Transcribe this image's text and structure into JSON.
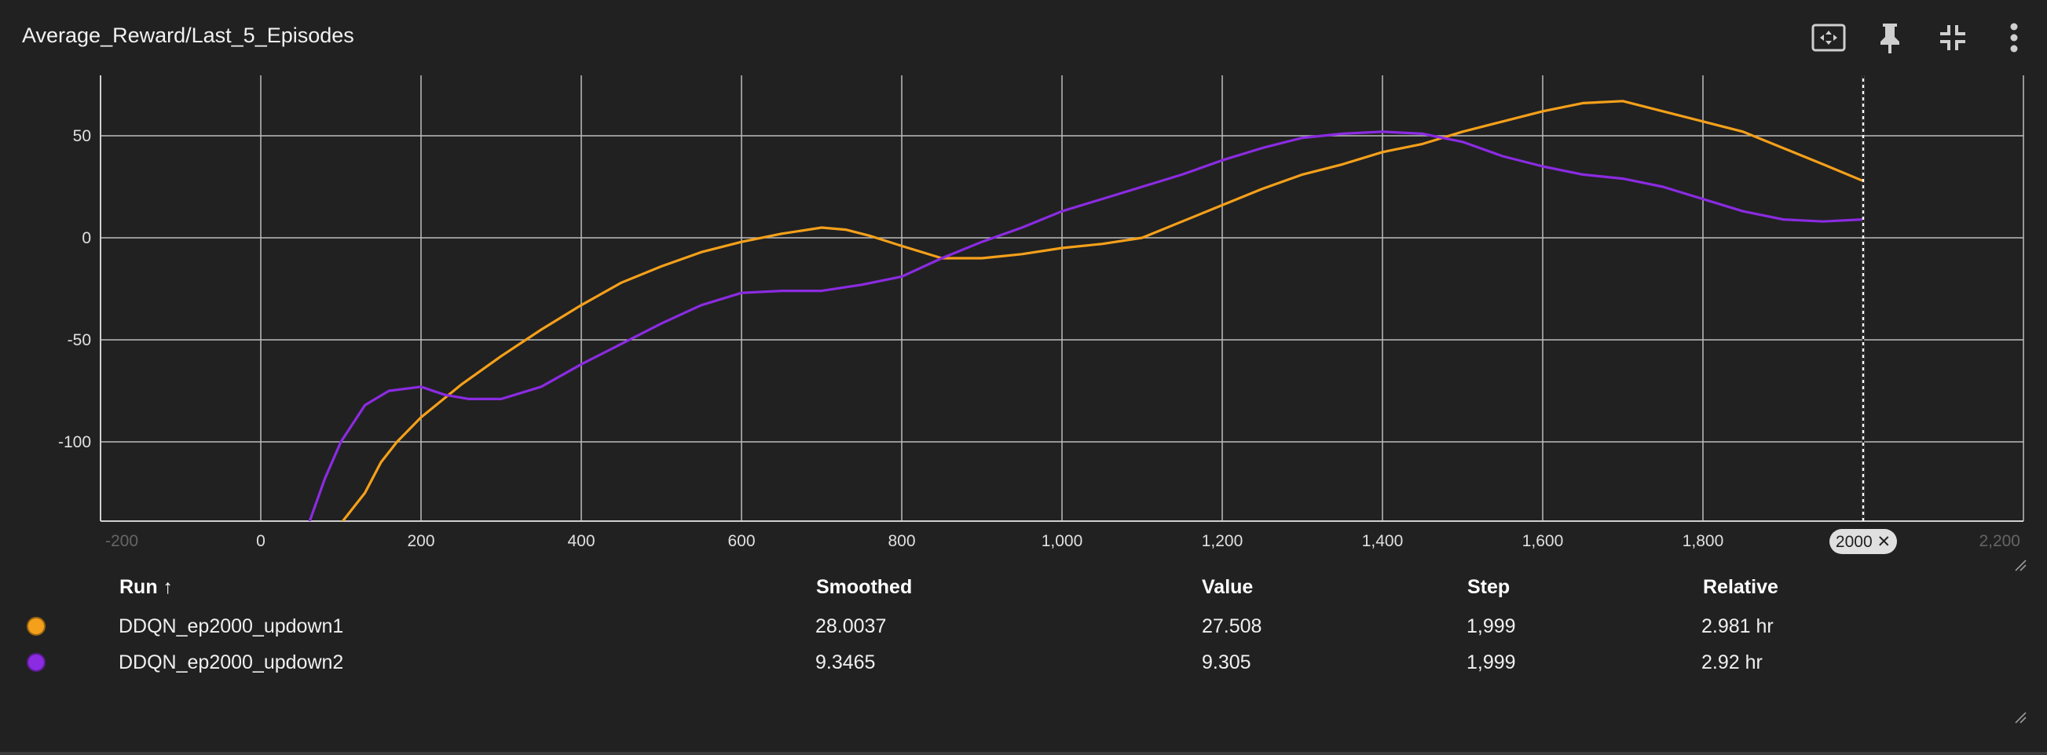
{
  "card": {
    "title": "Average_Reward/Last_5_Episodes"
  },
  "toolbar": {
    "icons": [
      "fit-to-data-icon",
      "pin-icon",
      "collapse-icon",
      "more-vert-icon"
    ]
  },
  "chart_data": {
    "type": "line",
    "title": "Average_Reward/Last_5_Episodes",
    "xlabel": "",
    "ylabel": "",
    "xlim": [
      -200,
      2200
    ],
    "ylim": [
      -140,
      80
    ],
    "x_ticks": [
      -200,
      0,
      200,
      400,
      600,
      800,
      1000,
      1200,
      1400,
      1600,
      1800,
      2200
    ],
    "x_tick_labels": [
      "-200",
      "0",
      "200",
      "400",
      "600",
      "800",
      "1,000",
      "1,200",
      "1,400",
      "1,600",
      "1,800",
      "2,200"
    ],
    "y_ticks": [
      50,
      0,
      -50,
      -100
    ],
    "y_tick_labels": [
      "50",
      "0",
      "-50",
      "-100"
    ],
    "grid": true,
    "cursor": {
      "step": 2000,
      "label": "2000 ✕"
    },
    "series": [
      {
        "name": "DDQN_ep2000_updown1",
        "color": "#f5a01a",
        "x": [
          100,
          130,
          150,
          170,
          200,
          250,
          300,
          350,
          400,
          450,
          500,
          550,
          600,
          650,
          700,
          730,
          760,
          800,
          850,
          900,
          950,
          1000,
          1050,
          1100,
          1150,
          1200,
          1250,
          1300,
          1350,
          1400,
          1450,
          1500,
          1550,
          1600,
          1650,
          1700,
          1750,
          1800,
          1850,
          1900,
          1950,
          1999
        ],
        "y": [
          -140,
          -125,
          -110,
          -100,
          -88,
          -72,
          -58,
          -45,
          -33,
          -22,
          -14,
          -7,
          -2,
          2,
          5,
          4,
          1,
          -4,
          -10,
          -10,
          -8,
          -5,
          -3,
          0,
          8,
          16,
          24,
          31,
          36,
          42,
          46,
          52,
          57,
          62,
          66,
          67,
          62,
          57,
          52,
          44,
          36,
          28
        ]
      },
      {
        "name": "DDQN_ep2000_updown2",
        "color": "#8b2be2",
        "x": [
          60,
          80,
          100,
          130,
          160,
          200,
          230,
          260,
          300,
          350,
          400,
          450,
          500,
          550,
          600,
          650,
          700,
          750,
          800,
          850,
          900,
          950,
          1000,
          1050,
          1100,
          1150,
          1200,
          1250,
          1300,
          1350,
          1400,
          1450,
          1500,
          1550,
          1600,
          1650,
          1700,
          1750,
          1800,
          1850,
          1900,
          1950,
          1999
        ],
        "y": [
          -140,
          -118,
          -100,
          -82,
          -75,
          -73,
          -77,
          -79,
          -79,
          -73,
          -62,
          -52,
          -42,
          -33,
          -27,
          -26,
          -26,
          -23,
          -19,
          -10,
          -2,
          5,
          13,
          19,
          25,
          31,
          38,
          44,
          49,
          51,
          52,
          51,
          47,
          40,
          35,
          31,
          29,
          25,
          19,
          13,
          9,
          8,
          9
        ]
      }
    ]
  },
  "table": {
    "headers": {
      "run": "Run ↑",
      "smoothed": "Smoothed",
      "value": "Value",
      "step": "Step",
      "relative": "Relative"
    },
    "rows": [
      {
        "color": "#f5a01a",
        "run": "DDQN_ep2000_updown1",
        "smoothed": "28.0037",
        "value": "27.508",
        "step": "1,999",
        "relative": "2.981 hr"
      },
      {
        "color": "#8b2be2",
        "run": "DDQN_ep2000_updown2",
        "smoothed": "9.3465",
        "value": "9.305",
        "step": "1,999",
        "relative": "2.92 hr"
      }
    ]
  }
}
